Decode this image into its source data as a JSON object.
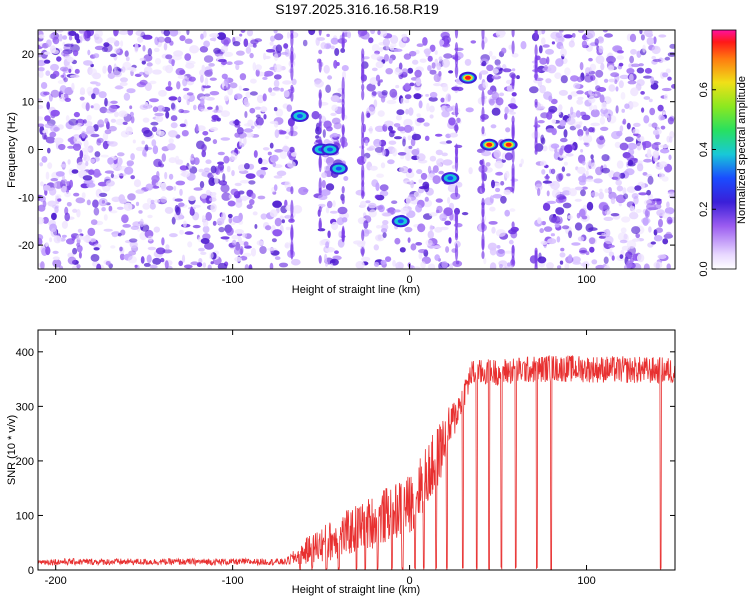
{
  "title": "S197.2025.316.16.58.R19",
  "chart_data": [
    {
      "type": "heatmap",
      "xlabel": "Height of straight line (km)",
      "ylabel": "Frequency (Hz)",
      "xlim": [
        -210,
        150
      ],
      "ylim": [
        -25,
        25
      ],
      "xticks": [
        -200,
        -100,
        0,
        100
      ],
      "yticks": [
        20,
        10,
        0,
        -10,
        -20
      ],
      "xtick_labels": [
        "-200",
        "-100",
        "0",
        "100"
      ],
      "ytick_labels": [
        "20",
        "10",
        "0",
        "-10",
        "-20"
      ],
      "colorbar": {
        "label": "Normalized spectral amplitude",
        "range": [
          0.0,
          0.8
        ],
        "ticks": [
          0.0,
          0.2,
          0.4,
          0.6
        ],
        "tick_labels": [
          "0.0",
          "0.2",
          "0.4",
          "0.6"
        ],
        "colormap": "rainbow"
      },
      "empty_bands_km": [
        [
          -65,
          -52
        ],
        [
          -36,
          -28
        ],
        [
          28,
          40
        ],
        [
          60,
          70
        ]
      ],
      "hotspots": [
        {
          "x": -50,
          "y": 0,
          "value": 0.3
        },
        {
          "x": -45,
          "y": 0,
          "value": 0.28
        },
        {
          "x": -40,
          "y": -4,
          "value": 0.22
        },
        {
          "x": -62,
          "y": 7,
          "value": 0.2
        },
        {
          "x": -5,
          "y": -15,
          "value": 0.18
        },
        {
          "x": 23,
          "y": -6,
          "value": 0.22
        },
        {
          "x": 33,
          "y": 15,
          "value": 0.78
        },
        {
          "x": 45,
          "y": 1,
          "value": 0.7
        },
        {
          "x": 56,
          "y": 1,
          "value": 0.72
        }
      ]
    },
    {
      "type": "line",
      "xlabel": "Height of straight line (km)",
      "ylabel": "SNR (10 * v/v)",
      "xlim": [
        -210,
        150
      ],
      "ylim": [
        0,
        440
      ],
      "xticks": [
        -200,
        -100,
        0,
        100
      ],
      "yticks": [
        0,
        100,
        200,
        300,
        400
      ],
      "xtick_labels": [
        "-200",
        "-100",
        "0",
        "100"
      ],
      "ytick_labels": [
        "0",
        "100",
        "200",
        "300",
        "400"
      ],
      "color": "#e83030",
      "series": [
        {
          "name": "SNR",
          "profile": [
            {
              "x": -210,
              "mean": 15,
              "noise": 12
            },
            {
              "x": -70,
              "mean": 15,
              "noise": 12
            },
            {
              "x": -55,
              "mean": 40,
              "noise": 60
            },
            {
              "x": -40,
              "mean": 60,
              "noise": 80
            },
            {
              "x": -20,
              "mean": 90,
              "noise": 100
            },
            {
              "x": 0,
              "mean": 120,
              "noise": 110
            },
            {
              "x": 15,
              "mean": 200,
              "noise": 120
            },
            {
              "x": 28,
              "mean": 300,
              "noise": 60
            },
            {
              "x": 35,
              "mean": 360,
              "noise": 50
            },
            {
              "x": 80,
              "mean": 370,
              "noise": 50
            },
            {
              "x": 150,
              "mean": 365,
              "noise": 50
            }
          ],
          "dropouts": [
            -62,
            -55,
            -47,
            -40,
            -30,
            -25,
            -18,
            -10,
            -4,
            3,
            8,
            15,
            21,
            30,
            38,
            45,
            52,
            60,
            72,
            80,
            142
          ]
        }
      ]
    }
  ]
}
